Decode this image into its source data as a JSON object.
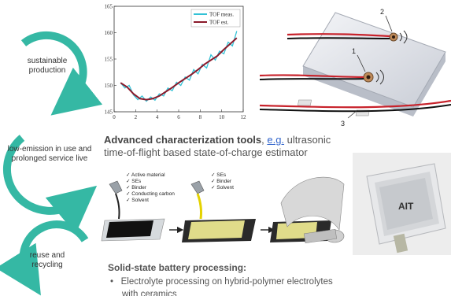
{
  "cycle": {
    "step1": "sustainable production",
    "step2": "low-emission in use and prolonged service live",
    "step3": "reuse and recycling"
  },
  "tof_chart": {
    "legend_measured": "TOF meas.",
    "legend_estimated": "TOF est.",
    "color_measured": "#33c2d6",
    "color_estimated": "#8b1a2b"
  },
  "chart_data": {
    "type": "line",
    "xlim": [
      0,
      12
    ],
    "ylim": [
      145,
      165
    ],
    "x_ticks": [
      "0",
      "2",
      "4",
      "6",
      "8",
      "10",
      "12"
    ],
    "y_ticks": [
      "145",
      "150",
      "155",
      "160",
      "165"
    ],
    "legend_position": "top-right",
    "series": [
      {
        "name": "TOF meas.",
        "x": [
          0.6,
          1.0,
          1.4,
          1.8,
          2.2,
          2.6,
          3.0,
          3.4,
          3.8,
          4.2,
          4.6,
          5.0,
          5.4,
          5.8,
          6.2,
          6.6,
          7.0,
          7.4,
          7.8,
          8.2,
          8.6,
          9.0,
          9.4,
          9.8,
          10.2,
          10.6,
          11.0,
          11.4
        ],
        "y": [
          150.5,
          149.5,
          150.0,
          148.2,
          147.3,
          148.0,
          147.0,
          147.8,
          147.2,
          148.4,
          148.0,
          149.5,
          149.0,
          150.6,
          150.0,
          151.6,
          151.0,
          153.0,
          152.2,
          154.0,
          153.3,
          155.8,
          154.8,
          156.5,
          156.0,
          158.2,
          157.5,
          160.3
        ]
      },
      {
        "name": "TOF est.",
        "x": [
          0.6,
          1.2,
          1.8,
          2.4,
          3.0,
          3.6,
          4.2,
          4.8,
          5.4,
          6.0,
          6.6,
          7.2,
          7.8,
          8.4,
          9.0,
          9.6,
          10.2,
          10.8,
          11.4
        ],
        "y": [
          150.5,
          149.7,
          148.4,
          147.5,
          147.3,
          147.5,
          148.0,
          148.8,
          149.6,
          150.5,
          151.3,
          152.1,
          153.0,
          154.0,
          154.8,
          155.6,
          156.8,
          157.9,
          159.0
        ]
      }
    ]
  },
  "battery_cell": {
    "label_1": "1",
    "label_2": "2",
    "label_3": "3"
  },
  "characterization": {
    "heading_bold": "Advanced characterization tools",
    "heading_sep": ", ",
    "heading_eg": "e.g.",
    "heading_rest": " ultrasonic",
    "heading_line2": "time-of-flight based state-of-charge estimator"
  },
  "process": {
    "checklist_1": [
      "Active material",
      "SEs",
      "Binder",
      "Conducting carbon",
      "Solvent"
    ],
    "checklist_2": [
      "SEs",
      "Binder",
      "Solvent"
    ],
    "pouch_brand": "AIT"
  },
  "processing": {
    "heading": "Solid-state battery processing:",
    "bullet_symbol": "•",
    "bullet_1": "Electrolyte processing on hybrid-polymer electrolytes",
    "bullet_1_cont": "with ceramics"
  }
}
